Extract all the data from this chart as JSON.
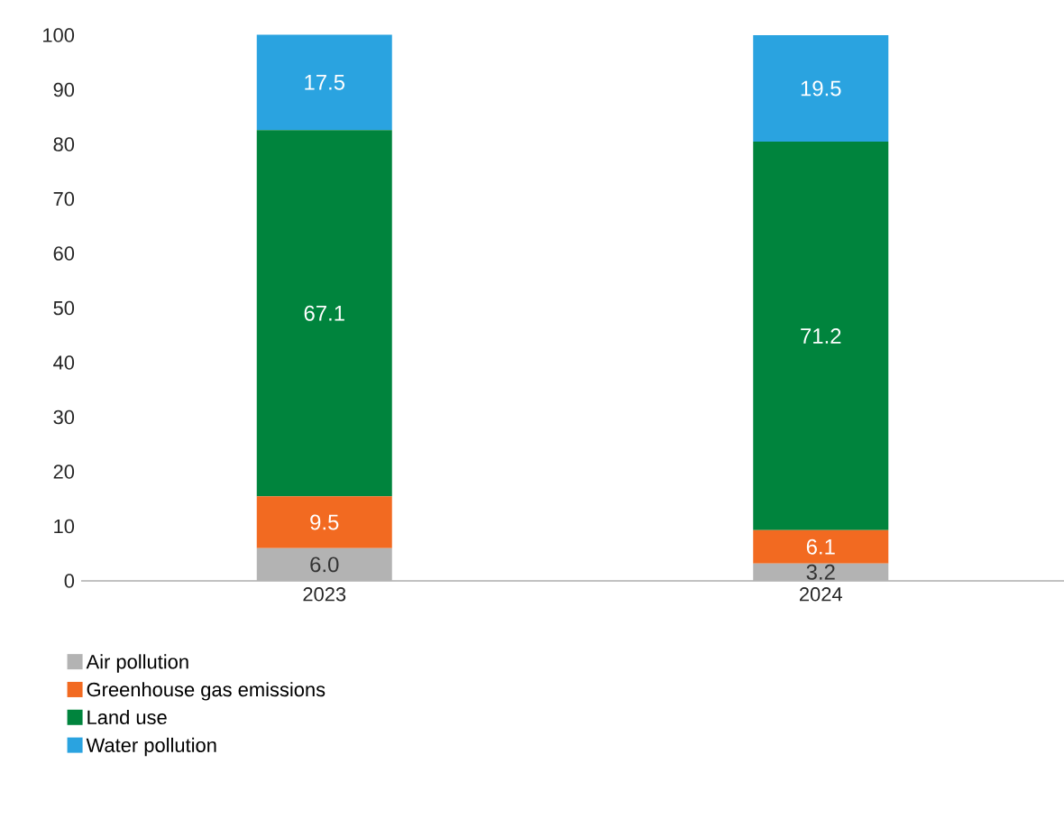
{
  "chart_data": {
    "type": "bar",
    "stacked": true,
    "categories": [
      "2023",
      "2024"
    ],
    "series": [
      {
        "name": "Air pollution",
        "color": "#b3b3b3",
        "values": [
          6.0,
          3.2
        ],
        "value_labels": [
          "6.0",
          "3.2"
        ]
      },
      {
        "name": "Greenhouse gas emissions",
        "color": "#f26a21",
        "values": [
          9.5,
          6.1
        ],
        "value_labels": [
          "9.5",
          "6.1"
        ]
      },
      {
        "name": "Land use",
        "color": "#00843d",
        "values": [
          67.1,
          71.2
        ],
        "value_labels": [
          "67.1",
          "71.2"
        ]
      },
      {
        "name": "Water pollution",
        "color": "#2aa3e0",
        "values": [
          17.5,
          19.5
        ],
        "value_labels": [
          "17.5",
          "19.5"
        ]
      }
    ],
    "ylim": [
      0,
      100.5
    ],
    "yticks": [
      0,
      10,
      20,
      30,
      40,
      50,
      60,
      70,
      80,
      90,
      100
    ],
    "grid": false,
    "legend": "bottom left"
  }
}
